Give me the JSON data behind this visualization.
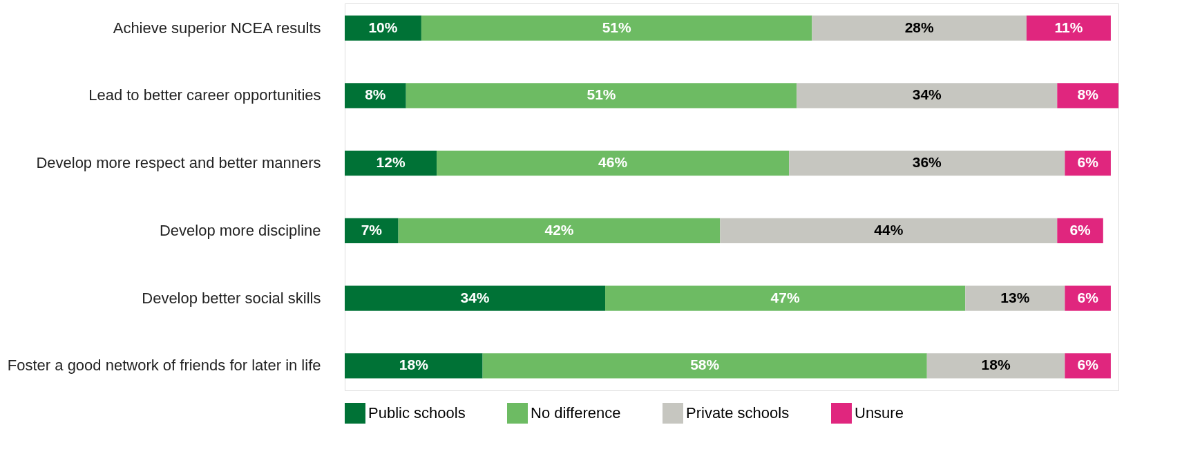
{
  "chart_data": {
    "type": "bar",
    "orientation": "horizontal",
    "stacked": true,
    "legend": "bottom",
    "categories": [
      "Achieve superior NCEA results",
      "Lead to better career opportunities",
      "Develop more respect and better manners",
      "Develop more discipline",
      "Develop better social skills",
      "Foster a good network of friends for later in life"
    ],
    "series": [
      {
        "name": "Public schools",
        "color": "#007236",
        "values": [
          10,
          8,
          12,
          7,
          34,
          18
        ],
        "value_labels": [
          "10%",
          "8%",
          "12%",
          "7%",
          "34%",
          "18%"
        ]
      },
      {
        "name": "No difference",
        "color": "#6dbb63",
        "values": [
          51,
          51,
          46,
          42,
          47,
          58
        ],
        "value_labels": [
          "51%",
          "51%",
          "46%",
          "42%",
          "47%",
          "58%"
        ]
      },
      {
        "name": "Private schools",
        "color": "#c6c6c0",
        "values": [
          28,
          34,
          36,
          44,
          13,
          18
        ],
        "value_labels": [
          "28%",
          "34%",
          "36%",
          "44%",
          "13%",
          "18%"
        ]
      },
      {
        "name": "Unsure",
        "color": "#e0267e",
        "values": [
          11,
          8,
          6,
          6,
          6,
          6
        ],
        "value_labels": [
          "11%",
          "8%",
          "6%",
          "6%",
          "6%",
          "6%"
        ]
      }
    ]
  }
}
